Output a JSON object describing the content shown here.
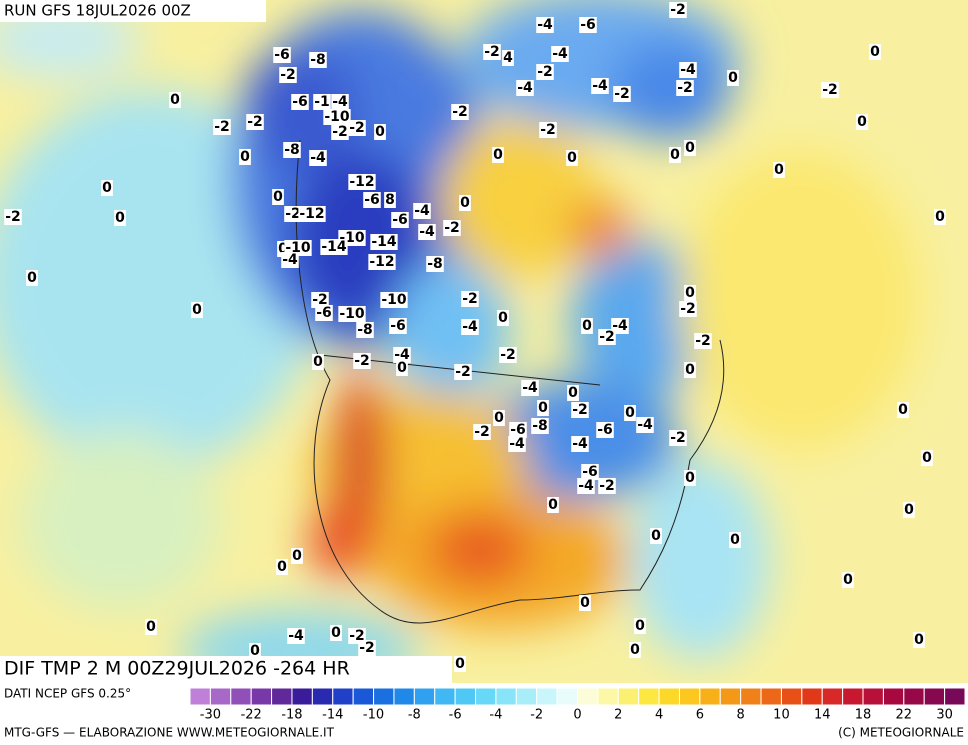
{
  "header": {
    "run": "RUN GFS 18JUL2026 00Z"
  },
  "map": {
    "title": "DIF TMP 2 M 00Z29JUL2026 -264 HR",
    "contour_labels": [
      -4,
      -6,
      -2,
      -6,
      -8,
      -2,
      4,
      -4,
      0,
      -2,
      -2,
      -4,
      0,
      0,
      -6,
      -1,
      -4,
      -4,
      -4,
      -2,
      -2,
      -2,
      -10,
      -2,
      -2,
      -2,
      -2,
      -2,
      0,
      -2,
      0,
      -8,
      -4,
      0,
      0,
      0,
      0,
      0,
      0,
      -12,
      0,
      0,
      -6,
      8,
      0,
      -2,
      0,
      -2,
      -12,
      -6,
      -4,
      -4,
      -2,
      0,
      -10,
      -14,
      -14,
      0,
      -10,
      -4,
      -12,
      -8,
      0,
      0,
      -2,
      -2,
      -2,
      -10,
      0,
      -6,
      -10,
      0,
      0,
      -4,
      -2,
      -4,
      -6,
      -8,
      -2,
      -2,
      -4,
      -2,
      0,
      0,
      -2,
      0,
      -4,
      0,
      0,
      -2,
      0,
      0,
      0,
      -2,
      -6,
      -8,
      -4,
      -6,
      -2,
      -4,
      -4,
      0,
      -6,
      -4,
      -2,
      0,
      0,
      0,
      0,
      0,
      0,
      0,
      0,
      0,
      0,
      0,
      0,
      -2,
      -4,
      0,
      -2,
      0,
      0,
      0
    ]
  },
  "colorbar": {
    "labels": [
      -30,
      -22,
      -18,
      -14,
      -10,
      -8,
      -6,
      -4,
      -2,
      0,
      2,
      4,
      6,
      8,
      10,
      14,
      18,
      22,
      30
    ],
    "colors": [
      "#c080d8",
      "#a868c8",
      "#9050b8",
      "#7838a8",
      "#602898",
      "#3a1c9a",
      "#2a2ab0",
      "#2040c8",
      "#1a58d8",
      "#1a70e0",
      "#2088e8",
      "#30a0f0",
      "#40b8f4",
      "#50c8f6",
      "#68d8f8",
      "#88e4f8",
      "#a8eef8",
      "#c8f6fa",
      "#e8fcfc",
      "#fcfcd8",
      "#fcf8a8",
      "#fcf070",
      "#fce840",
      "#fcd828",
      "#fcc820",
      "#f8b018",
      "#f49818",
      "#f08018",
      "#ec6818",
      "#e85018",
      "#e03818",
      "#d82828",
      "#c81830",
      "#b81038",
      "#a80840",
      "#980848",
      "#880850",
      "#780858"
    ]
  },
  "footer": {
    "source": "DATI NCEP GFS 0.25°",
    "credit": "MTG-GFS — ELABORAZIONE WWW.METEOGIORNALE.IT",
    "copyright": "(C) METEOGIORNALE"
  }
}
